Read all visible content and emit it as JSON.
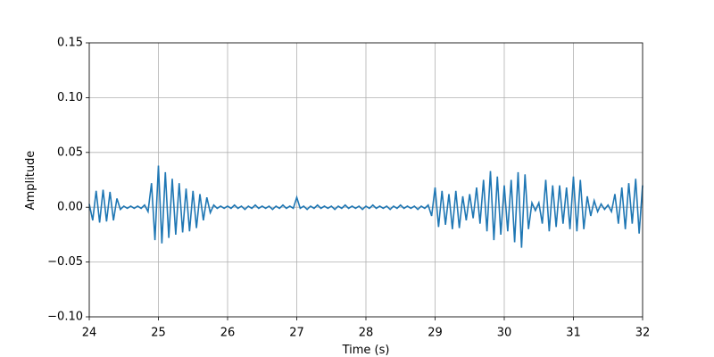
{
  "chart_data": {
    "type": "line",
    "xlabel": "Time (s)",
    "ylabel": "Amplitude",
    "xlim": [
      24,
      32
    ],
    "ylim": [
      -0.1,
      0.15
    ],
    "xticks": [
      24,
      25,
      26,
      27,
      28,
      29,
      30,
      31,
      32
    ],
    "yticks": [
      {
        "value": -0.1,
        "label": "−0.10"
      },
      {
        "value": -0.05,
        "label": "−0.05"
      },
      {
        "value": 0,
        "label": "0.00"
      },
      {
        "value": 0.05,
        "label": "0.05"
      },
      {
        "value": 0.1,
        "label": "0.10"
      },
      {
        "value": 0.15,
        "label": "0.15"
      }
    ],
    "grid": true,
    "x": [
      24.0,
      24.05,
      24.1,
      24.15,
      24.2,
      24.25,
      24.3,
      24.35,
      24.4,
      24.45,
      24.5,
      24.55,
      24.6,
      24.65,
      24.7,
      24.75,
      24.8,
      24.85,
      24.9,
      24.95,
      25.0,
      25.05,
      25.1,
      25.15,
      25.2,
      25.25,
      25.3,
      25.35,
      25.4,
      25.45,
      25.5,
      25.55,
      25.6,
      25.65,
      25.7,
      25.75,
      25.8,
      25.85,
      25.9,
      25.95,
      26.0,
      26.05,
      26.1,
      26.15,
      26.2,
      26.25,
      26.3,
      26.35,
      26.4,
      26.45,
      26.5,
      26.55,
      26.6,
      26.65,
      26.7,
      26.75,
      26.8,
      26.85,
      26.9,
      26.95,
      27.0,
      27.05,
      27.1,
      27.15,
      27.2,
      27.25,
      27.3,
      27.35,
      27.4,
      27.45,
      27.5,
      27.55,
      27.6,
      27.65,
      27.7,
      27.75,
      27.8,
      27.85,
      27.9,
      27.95,
      28.0,
      28.05,
      28.1,
      28.15,
      28.2,
      28.25,
      28.3,
      28.35,
      28.4,
      28.45,
      28.5,
      28.55,
      28.6,
      28.65,
      28.7,
      28.75,
      28.8,
      28.85,
      28.9,
      28.95,
      29.0,
      29.05,
      29.1,
      29.15,
      29.2,
      29.25,
      29.3,
      29.35,
      29.4,
      29.45,
      29.5,
      29.55,
      29.6,
      29.65,
      29.7,
      29.75,
      29.8,
      29.85,
      29.9,
      29.95,
      30.0,
      30.05,
      30.1,
      30.15,
      30.2,
      30.25,
      30.3,
      30.35,
      30.4,
      30.45,
      30.5,
      30.55,
      30.6,
      30.65,
      30.7,
      30.75,
      30.8,
      30.85,
      30.9,
      30.95,
      31.0,
      31.05,
      31.1,
      31.15,
      31.2,
      31.25,
      31.3,
      31.35,
      31.4,
      31.45,
      31.5,
      31.55,
      31.6,
      31.65,
      31.7,
      31.75,
      31.8,
      31.85,
      31.9,
      31.95,
      32.0
    ],
    "series": [
      {
        "color": "#1f77b4",
        "values": [
          0.003,
          -0.012,
          0.015,
          -0.014,
          0.016,
          -0.013,
          0.014,
          -0.012,
          0.008,
          -0.002,
          0.001,
          -0.001,
          0.001,
          -0.001,
          0.001,
          -0.001,
          0.002,
          -0.004,
          0.022,
          -0.03,
          0.038,
          -0.033,
          0.032,
          -0.028,
          0.026,
          -0.025,
          0.022,
          -0.023,
          0.017,
          -0.022,
          0.015,
          -0.019,
          0.012,
          -0.012,
          0.009,
          -0.005,
          0.002,
          -0.001,
          0.001,
          -0.001,
          0.001,
          -0.001,
          0.002,
          -0.001,
          0.001,
          -0.002,
          0.001,
          -0.001,
          0.002,
          -0.001,
          0.001,
          -0.001,
          0.001,
          -0.002,
          0.001,
          -0.001,
          0.002,
          -0.001,
          0.001,
          -0.001,
          0.009,
          -0.001,
          0.001,
          -0.002,
          0.001,
          -0.001,
          0.002,
          -0.001,
          0.001,
          -0.001,
          0.001,
          -0.002,
          0.001,
          -0.001,
          0.002,
          -0.001,
          0.001,
          -0.001,
          0.001,
          -0.002,
          0.001,
          -0.001,
          0.002,
          -0.001,
          0.001,
          -0.001,
          0.001,
          -0.002,
          0.001,
          -0.001,
          0.002,
          -0.001,
          0.001,
          -0.001,
          0.001,
          -0.002,
          0.001,
          -0.001,
          0.002,
          -0.008,
          0.018,
          -0.018,
          0.015,
          -0.016,
          0.012,
          -0.02,
          0.015,
          -0.019,
          0.01,
          -0.012,
          0.012,
          -0.01,
          0.018,
          -0.015,
          0.025,
          -0.022,
          0.033,
          -0.03,
          0.028,
          -0.025,
          0.02,
          -0.022,
          0.025,
          -0.032,
          0.032,
          -0.037,
          0.03,
          -0.02,
          0.004,
          -0.003,
          0.004,
          -0.015,
          0.025,
          -0.022,
          0.02,
          -0.018,
          0.02,
          -0.015,
          0.018,
          -0.02,
          0.028,
          -0.022,
          0.025,
          -0.02,
          0.01,
          -0.008,
          0.006,
          -0.004,
          0.003,
          -0.002,
          0.002,
          -0.004,
          0.012,
          -0.015,
          0.018,
          -0.02,
          0.022,
          -0.015,
          0.026,
          -0.024,
          0.02
        ]
      }
    ]
  }
}
